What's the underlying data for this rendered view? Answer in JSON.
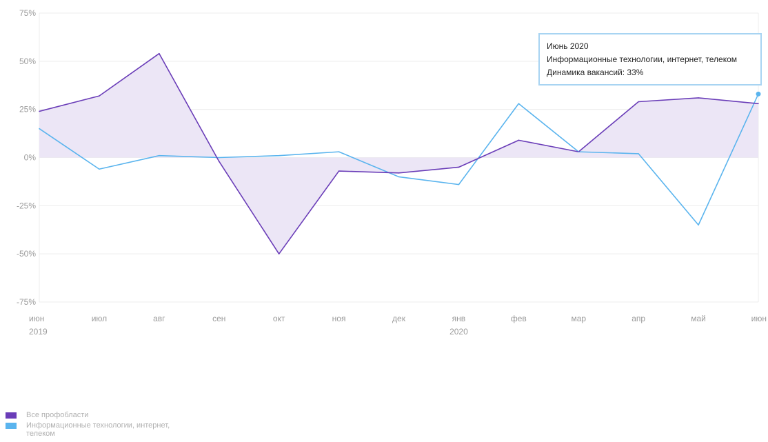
{
  "chart_data": {
    "type": "line",
    "categories": [
      "июн",
      "июл",
      "авг",
      "сен",
      "окт",
      "ноя",
      "дек",
      "янв",
      "фев",
      "мар",
      "апр",
      "май",
      "июн"
    ],
    "year_labels": [
      {
        "index": 0,
        "label": "2019"
      },
      {
        "index": 7,
        "label": "2020"
      }
    ],
    "series": [
      {
        "name": "Все профобласти",
        "color": "#6a3db8",
        "values": [
          24,
          32,
          54,
          -2,
          -50,
          -7,
          -8,
          -5,
          9,
          3,
          29,
          31,
          28
        ]
      },
      {
        "name": "Информационные технологии, интернет, телеком",
        "color": "#5ab4ee",
        "values": [
          15,
          -6,
          1,
          0,
          1,
          3,
          -10,
          -14,
          28,
          3,
          2,
          -35,
          33
        ]
      }
    ],
    "fill_color": "#ece6f6",
    "ylim": [
      -75,
      75
    ],
    "y_ticks": [
      75,
      50,
      25,
      0,
      -25,
      -50,
      -75
    ],
    "y_tick_labels": [
      "75%",
      "50%",
      "25%",
      "0%",
      "-25%",
      "-50%",
      "-75%"
    ],
    "grid": true,
    "legend_position": "bottom-left",
    "tooltip": {
      "title": "Июнь 2020",
      "series_name": "Информационные технологии, интернет, телеком",
      "value_text": "Динамика вакансий: 33%"
    }
  }
}
